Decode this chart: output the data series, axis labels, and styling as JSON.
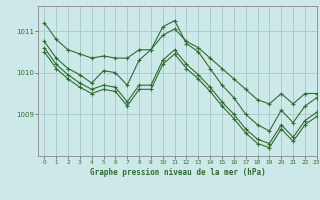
{
  "title": "Graphe pression niveau de la mer (hPa)",
  "background_color": "#cce8e8",
  "grid_color": "#aacccc",
  "line_color": "#2d6e2d",
  "marker_color": "#2d6e2d",
  "xlim": [
    -0.5,
    23
  ],
  "ylim": [
    1008.0,
    1011.6
  ],
  "yticks": [
    1009,
    1010,
    1011
  ],
  "xticks": [
    0,
    1,
    2,
    3,
    4,
    5,
    6,
    7,
    8,
    9,
    10,
    11,
    12,
    13,
    14,
    15,
    16,
    17,
    18,
    19,
    20,
    21,
    22,
    23
  ],
  "lines": [
    [
      1011.2,
      1010.8,
      1010.55,
      1010.45,
      1010.35,
      1010.4,
      1010.35,
      1010.35,
      1010.55,
      1010.55,
      1010.9,
      1011.05,
      1010.75,
      1010.6,
      1010.35,
      1010.1,
      1009.85,
      1009.6,
      1009.35,
      1009.25,
      1009.5,
      1009.25,
      1009.5,
      1009.5
    ],
    [
      1010.75,
      1010.35,
      1010.1,
      1009.95,
      1009.75,
      1010.05,
      1010.0,
      1009.7,
      1010.3,
      1010.55,
      1011.1,
      1011.25,
      1010.7,
      1010.5,
      1010.1,
      1009.7,
      1009.4,
      1009.0,
      1008.75,
      1008.6,
      1009.1,
      1008.8,
      1009.2,
      1009.4
    ],
    [
      1010.6,
      1010.2,
      1009.95,
      1009.75,
      1009.6,
      1009.7,
      1009.65,
      1009.3,
      1009.7,
      1009.7,
      1010.3,
      1010.55,
      1010.2,
      1009.95,
      1009.65,
      1009.3,
      1009.0,
      1008.65,
      1008.4,
      1008.3,
      1008.75,
      1008.45,
      1008.85,
      1009.05
    ],
    [
      1010.5,
      1010.1,
      1009.85,
      1009.65,
      1009.5,
      1009.6,
      1009.55,
      1009.2,
      1009.6,
      1009.6,
      1010.2,
      1010.45,
      1010.1,
      1009.85,
      1009.55,
      1009.2,
      1008.9,
      1008.55,
      1008.3,
      1008.2,
      1008.65,
      1008.35,
      1008.75,
      1008.95
    ]
  ]
}
